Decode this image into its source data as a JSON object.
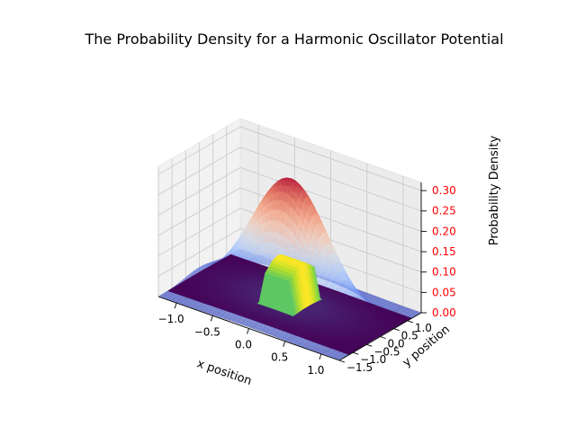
{
  "chart_data": {
    "type": "surface",
    "title": "The Probability Density for a Harmonic Oscillator Potential",
    "xlabel": "x position",
    "ylabel": "y position",
    "zlabel": "Probability Density",
    "xlim": [
      -1.25,
      1.25
    ],
    "ylim": [
      -1.5,
      1.5
    ],
    "zlim": [
      0,
      0.32
    ],
    "x_ticks": [
      "−1.0",
      "−0.5",
      "0.0",
      "0.5",
      "1.0"
    ],
    "x_tick_values": [
      -1.0,
      -0.5,
      0.0,
      0.5,
      1.0
    ],
    "y_ticks": [
      "−1.5",
      "−1.0",
      "−0.5",
      "0.0",
      "0.5",
      "1.0"
    ],
    "y_tick_values": [
      -1.5,
      -1.0,
      -0.5,
      0.0,
      0.5,
      1.0
    ],
    "z_ticks": [
      "0.00",
      "0.05",
      "0.10",
      "0.15",
      "0.20",
      "0.25",
      "0.30"
    ],
    "z_tick_values": [
      0.0,
      0.05,
      0.1,
      0.15,
      0.2,
      0.25,
      0.3
    ],
    "z_tick_color": "#ff0000",
    "grid": true,
    "surfaces": [
      {
        "role": "density surface",
        "peak": 0.31,
        "center": [
          0,
          0
        ],
        "width": 0.5,
        "colormap": "coolwarm",
        "alpha": 0.6
      },
      {
        "role": "cut-away surface",
        "peak": 0.11,
        "colormap": "viridis"
      }
    ]
  }
}
